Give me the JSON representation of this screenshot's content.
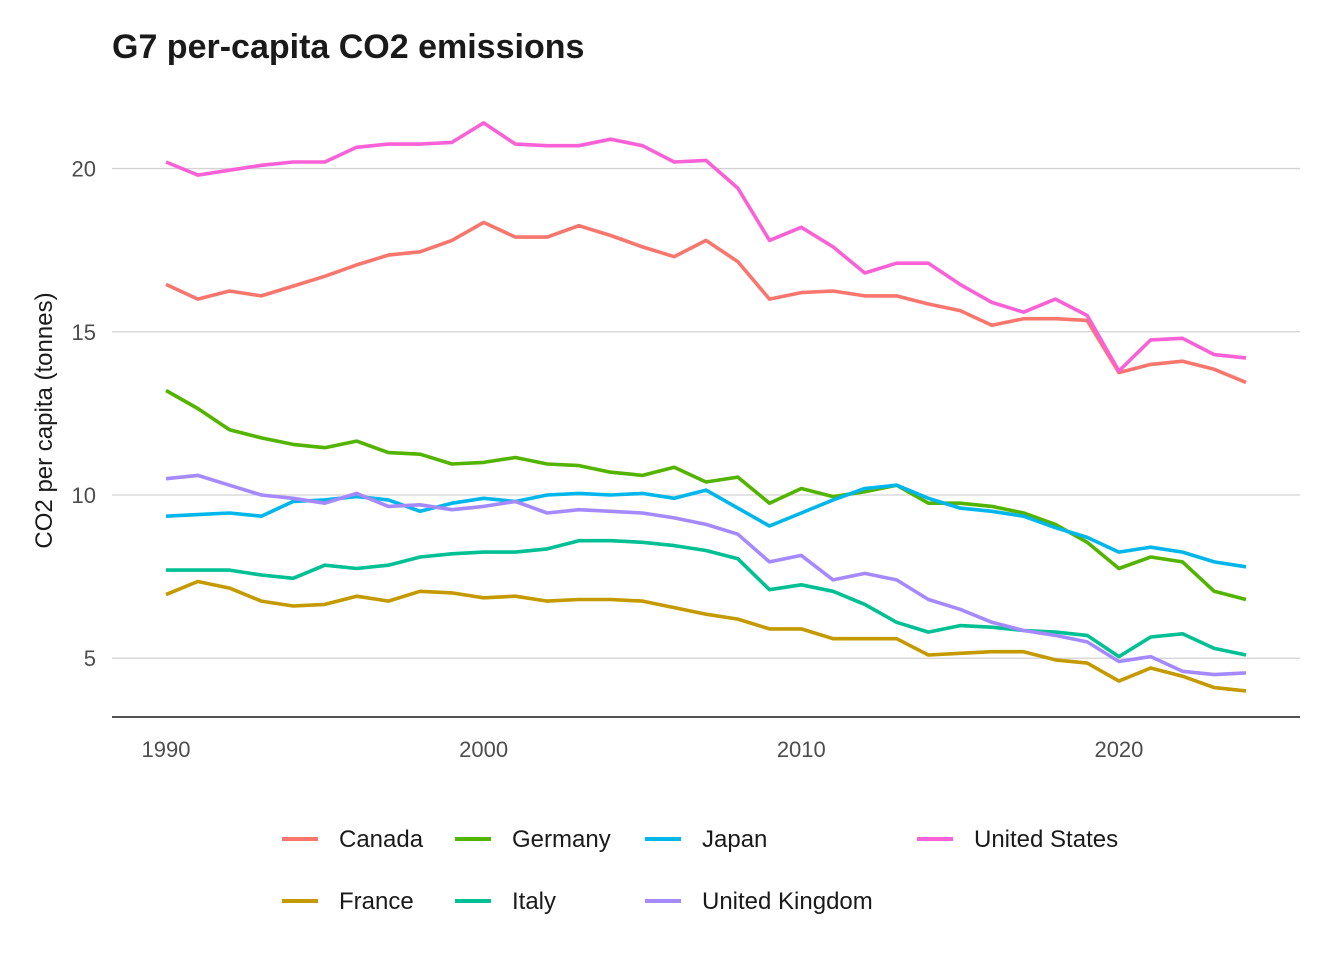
{
  "chart_data": {
    "type": "line",
    "title": "G7 per-capita CO2 emissions",
    "xlabel": "",
    "ylabel": "CO2 per capita (tonnes)",
    "x": [
      1990,
      1991,
      1992,
      1993,
      1994,
      1995,
      1996,
      1997,
      1998,
      1999,
      2000,
      2001,
      2002,
      2003,
      2004,
      2005,
      2006,
      2007,
      2008,
      2009,
      2010,
      2011,
      2012,
      2013,
      2014,
      2015,
      2016,
      2017,
      2018,
      2019,
      2020,
      2021,
      2022,
      2023,
      2024
    ],
    "xticks": [
      1990,
      2000,
      2010,
      2020
    ],
    "yticks": [
      5,
      10,
      15,
      20
    ],
    "xlim": [
      1988.3,
      2025.7
    ],
    "ylim": [
      3.2,
      22.1
    ],
    "grid": "horizontal major",
    "legend_position": "bottom",
    "series": [
      {
        "name": "Canada",
        "color": "#F8766D",
        "values": [
          16.45,
          16.0,
          16.25,
          16.1,
          16.4,
          16.7,
          17.05,
          17.35,
          17.45,
          17.8,
          18.35,
          17.9,
          17.9,
          18.25,
          17.95,
          17.6,
          17.3,
          17.8,
          17.15,
          16.0,
          16.2,
          16.25,
          16.1,
          16.1,
          15.85,
          15.65,
          15.2,
          15.4,
          15.4,
          15.35,
          13.75,
          14.0,
          14.1,
          13.85,
          13.45
        ]
      },
      {
        "name": "France",
        "color": "#C49A00",
        "values": [
          6.95,
          7.35,
          7.15,
          6.75,
          6.6,
          6.65,
          6.9,
          6.75,
          7.05,
          7.0,
          6.85,
          6.9,
          6.75,
          6.8,
          6.8,
          6.75,
          6.55,
          6.35,
          6.2,
          5.9,
          5.9,
          5.6,
          5.6,
          5.6,
          5.1,
          5.15,
          5.2,
          5.2,
          4.95,
          4.85,
          4.3,
          4.7,
          4.45,
          4.1,
          4.0
        ]
      },
      {
        "name": "Germany",
        "color": "#53B400",
        "values": [
          13.2,
          12.65,
          12.0,
          11.75,
          11.55,
          11.45,
          11.65,
          11.3,
          11.25,
          10.95,
          11.0,
          11.15,
          10.95,
          10.9,
          10.7,
          10.6,
          10.85,
          10.4,
          10.55,
          9.75,
          10.2,
          9.95,
          10.1,
          10.3,
          9.75,
          9.75,
          9.65,
          9.45,
          9.1,
          8.55,
          7.75,
          8.1,
          7.95,
          7.05,
          6.8
        ]
      },
      {
        "name": "Italy",
        "color": "#00C094",
        "values": [
          7.7,
          7.7,
          7.7,
          7.55,
          7.45,
          7.85,
          7.75,
          7.85,
          8.1,
          8.2,
          8.25,
          8.25,
          8.35,
          8.6,
          8.6,
          8.55,
          8.45,
          8.3,
          8.05,
          7.1,
          7.25,
          7.05,
          6.65,
          6.1,
          5.8,
          6.0,
          5.95,
          5.85,
          5.8,
          5.7,
          5.05,
          5.65,
          5.75,
          5.3,
          5.1
        ]
      },
      {
        "name": "Japan",
        "color": "#00B6EB",
        "values": [
          9.35,
          9.4,
          9.45,
          9.35,
          9.8,
          9.85,
          9.95,
          9.85,
          9.5,
          9.75,
          9.9,
          9.8,
          10.0,
          10.05,
          10.0,
          10.05,
          9.9,
          10.15,
          9.6,
          9.05,
          9.45,
          9.85,
          10.2,
          10.3,
          9.9,
          9.6,
          9.5,
          9.35,
          9.0,
          8.7,
          8.25,
          8.4,
          8.25,
          7.95,
          7.8
        ]
      },
      {
        "name": "United Kingdom",
        "color": "#A58AFF",
        "values": [
          10.5,
          10.6,
          10.3,
          10.0,
          9.9,
          9.75,
          10.05,
          9.65,
          9.7,
          9.55,
          9.65,
          9.8,
          9.45,
          9.55,
          9.5,
          9.45,
          9.3,
          9.1,
          8.8,
          7.95,
          8.15,
          7.4,
          7.6,
          7.4,
          6.8,
          6.5,
          6.1,
          5.85,
          5.7,
          5.5,
          4.9,
          5.05,
          4.6,
          4.5,
          4.55
        ]
      },
      {
        "name": "United States",
        "color": "#FB61D7",
        "values": [
          20.2,
          19.8,
          19.95,
          20.1,
          20.2,
          20.2,
          20.65,
          20.75,
          20.75,
          20.8,
          21.4,
          20.75,
          20.7,
          20.7,
          20.9,
          20.7,
          20.2,
          20.25,
          19.4,
          17.8,
          18.2,
          17.6,
          16.8,
          17.1,
          17.1,
          16.45,
          15.9,
          15.6,
          16.0,
          15.5,
          13.8,
          14.75,
          14.8,
          14.3,
          14.2
        ]
      }
    ],
    "legend": {
      "rows": [
        [
          "Canada",
          "Germany",
          "Japan",
          "United States"
        ],
        [
          "France",
          "Italy",
          "United Kingdom"
        ]
      ]
    }
  }
}
